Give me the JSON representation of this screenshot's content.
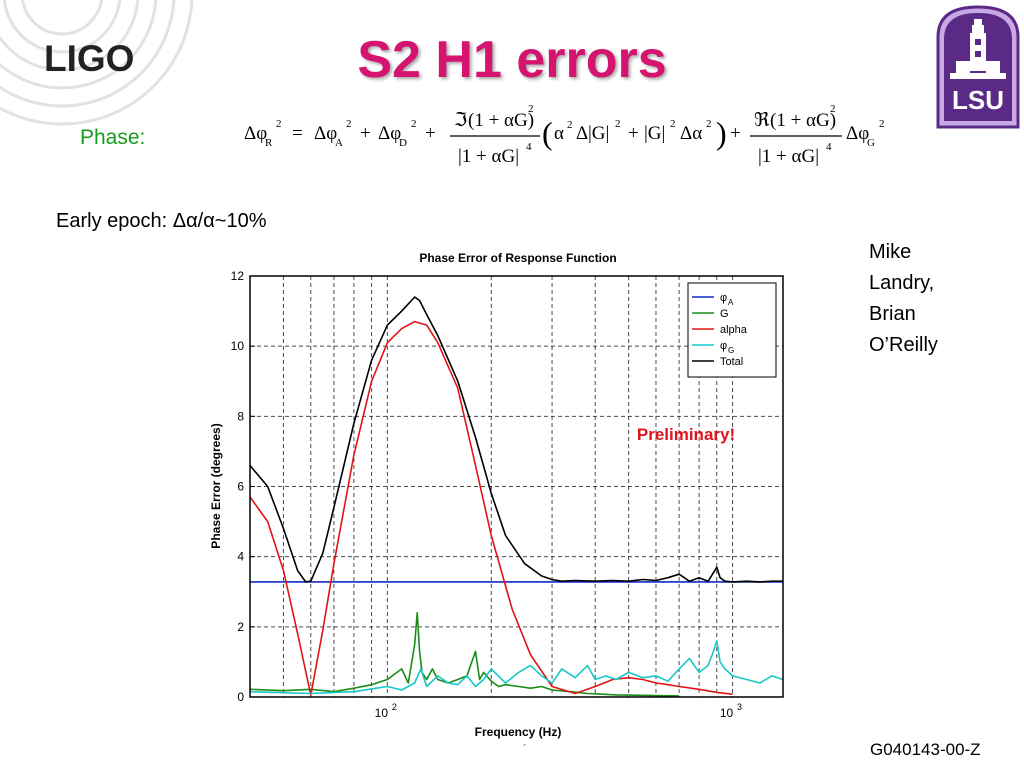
{
  "logo": {
    "text": "LIGO"
  },
  "title": "S2 H1 errors",
  "badge": {
    "text": "LSU"
  },
  "phase_label": "Phase:",
  "equation": {
    "lhs": "Δφ",
    "sub_R": "R",
    "sub_A": "A",
    "sub_D": "D",
    "sub_G": "G",
    "exp2": "2",
    "exp4": "4",
    "eq": "=",
    "plus": "+",
    "delta_phi": "Δφ",
    "im": "ℑ",
    "re": "ℜ",
    "one_plus_aG": "(1 + αG)",
    "den": "|1 + αG|",
    "alpha": "α",
    "delta": "Δ",
    "absG": "|G|",
    "delta_alpha": "Δα"
  },
  "early_epoch": "Early epoch: Δα/α~10%",
  "authors": [
    "Mike",
    "Landry,",
    "Brian",
    "O’Reilly"
  ],
  "doc_id": "G040143-00-Z",
  "dot": "´",
  "annotation": "Preliminary!",
  "colors": {
    "title": "#d4146e",
    "phase_label": "#1a9a1a",
    "badge_purple": "#5b2a86",
    "annotation": "#e0141a",
    "phiA": "#1428c8",
    "G": "#1a8c1a",
    "alpha": "#e01414",
    "phiG": "#18c8c8",
    "total": "#000000"
  },
  "chart_data": {
    "type": "line",
    "title": "Phase Error of Response Function",
    "xlabel": "Frequency (Hz)",
    "ylabel": "Phase Error (degrees)",
    "x_scale": "log",
    "xlim": [
      40,
      1400
    ],
    "ylim": [
      0,
      12
    ],
    "x_tick_labels": [
      {
        "value": 100,
        "base": "10",
        "exp": "2"
      },
      {
        "value": 1000,
        "base": "10",
        "exp": "3"
      }
    ],
    "y_ticks": [
      0,
      2,
      4,
      6,
      8,
      10,
      12
    ],
    "grid": true,
    "legend_position": "top-right",
    "series": [
      {
        "name": "φA",
        "legend_main": "φ",
        "legend_sub": "A",
        "color": "#1428c8",
        "x": [
          40,
          1400
        ],
        "y": [
          3.28,
          3.28
        ]
      },
      {
        "name": "G",
        "legend_main": "G",
        "legend_sub": "",
        "color": "#1a8c1a",
        "x": [
          40,
          50,
          60,
          70,
          80,
          90,
          100,
          110,
          115,
          120,
          122,
          124,
          126,
          130,
          135,
          140,
          150,
          160,
          170,
          180,
          185,
          190,
          200,
          210,
          220,
          240,
          260,
          280,
          300,
          340,
          380,
          420,
          460,
          520,
          600,
          700
        ],
        "y": [
          0.22,
          0.18,
          0.22,
          0.15,
          0.25,
          0.35,
          0.5,
          0.8,
          0.4,
          1.5,
          2.4,
          1.3,
          0.7,
          0.5,
          0.8,
          0.5,
          0.4,
          0.5,
          0.6,
          1.3,
          0.5,
          0.7,
          0.45,
          0.3,
          0.35,
          0.3,
          0.25,
          0.3,
          0.2,
          0.15,
          0.1,
          0.08,
          0.06,
          0.05,
          0.04,
          0.03
        ]
      },
      {
        "name": "alpha",
        "legend_main": "alpha",
        "legend_sub": "",
        "color": "#e01414",
        "x": [
          40,
          45,
          50,
          55,
          60,
          65,
          70,
          80,
          90,
          100,
          110,
          120,
          130,
          140,
          160,
          180,
          200,
          230,
          260,
          300,
          350,
          400,
          450,
          500,
          550,
          600,
          650,
          700,
          800,
          900,
          1000
        ],
        "y": [
          5.7,
          5.0,
          3.6,
          1.8,
          0.05,
          1.9,
          3.8,
          6.9,
          9.0,
          10.1,
          10.5,
          10.7,
          10.6,
          10.1,
          8.8,
          6.6,
          4.6,
          2.5,
          1.2,
          0.3,
          0.1,
          0.3,
          0.5,
          0.55,
          0.5,
          0.4,
          0.35,
          0.3,
          0.22,
          0.13,
          0.08
        ]
      },
      {
        "name": "φG",
        "legend_main": "φ",
        "legend_sub": "G",
        "color": "#18c8c8",
        "x": [
          40,
          60,
          80,
          100,
          110,
          120,
          125,
          130,
          140,
          150,
          160,
          170,
          180,
          190,
          200,
          220,
          240,
          260,
          280,
          300,
          320,
          350,
          380,
          400,
          430,
          460,
          500,
          550,
          600,
          650,
          700,
          750,
          800,
          850,
          880,
          900,
          920,
          950,
          1000,
          1100,
          1200,
          1300,
          1400
        ],
        "y": [
          0.15,
          0.1,
          0.15,
          0.3,
          0.2,
          0.4,
          0.8,
          0.3,
          0.6,
          0.4,
          0.35,
          0.6,
          0.3,
          0.5,
          0.8,
          0.4,
          0.7,
          0.9,
          0.6,
          0.4,
          0.8,
          0.55,
          0.9,
          0.5,
          0.6,
          0.5,
          0.7,
          0.55,
          0.6,
          0.45,
          0.8,
          1.1,
          0.7,
          0.9,
          1.3,
          1.6,
          1.0,
          0.8,
          0.6,
          0.5,
          0.4,
          0.6,
          0.5
        ]
      },
      {
        "name": "Total",
        "legend_main": "Total",
        "legend_sub": "",
        "color": "#000000",
        "x": [
          40,
          45,
          50,
          55,
          58,
          60,
          65,
          70,
          80,
          90,
          100,
          110,
          120,
          124,
          130,
          140,
          160,
          180,
          200,
          220,
          250,
          280,
          300,
          320,
          350,
          400,
          450,
          500,
          550,
          600,
          650,
          700,
          750,
          800,
          850,
          900,
          920,
          950,
          1000,
          1100,
          1200,
          1300,
          1400
        ],
        "y": [
          6.6,
          6.0,
          4.8,
          3.6,
          3.28,
          3.3,
          4.1,
          5.4,
          7.8,
          9.6,
          10.6,
          11.0,
          11.4,
          11.3,
          10.9,
          10.3,
          9.0,
          7.4,
          5.8,
          4.6,
          3.8,
          3.45,
          3.35,
          3.3,
          3.32,
          3.3,
          3.32,
          3.3,
          3.35,
          3.32,
          3.4,
          3.5,
          3.3,
          3.4,
          3.3,
          3.7,
          3.4,
          3.3,
          3.28,
          3.3,
          3.28,
          3.3,
          3.3
        ]
      }
    ]
  }
}
